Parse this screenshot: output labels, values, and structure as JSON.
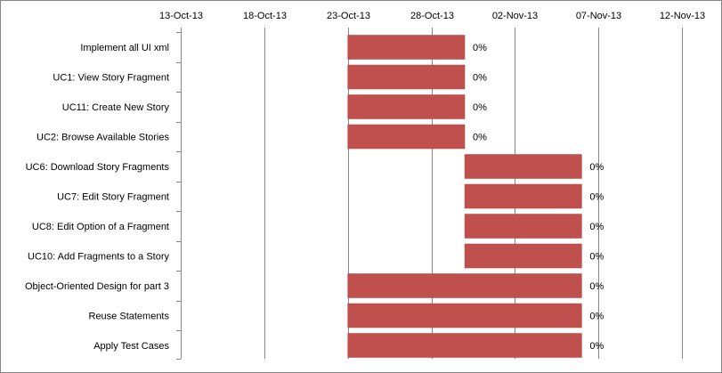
{
  "chart_data": {
    "type": "bar",
    "orientation": "horizontal",
    "subtype": "gantt",
    "title": "",
    "xlabel": "",
    "ylabel": "",
    "x_axis_position": "top",
    "grid": "vertical",
    "legend": "none",
    "xlim": [
      "2013-10-13",
      "2013-11-12"
    ],
    "xticks": [
      "2013-10-13",
      "2013-10-18",
      "2013-10-23",
      "2013-10-28",
      "2013-11-02",
      "2013-11-07",
      "2013-11-12"
    ],
    "xtick_labels": [
      "13-Oct-13",
      "18-Oct-13",
      "23-Oct-13",
      "28-Oct-13",
      "02-Nov-13",
      "07-Nov-13",
      "12-Nov-13"
    ],
    "bar_color": "#c0504d",
    "tasks": [
      {
        "name": "Implement all UI xml",
        "start": "2013-10-23",
        "end": "2013-10-30",
        "label": "0%"
      },
      {
        "name": "UC1: View Story Fragment",
        "start": "2013-10-23",
        "end": "2013-10-30",
        "label": "0%"
      },
      {
        "name": "UC11: Create New Story",
        "start": "2013-10-23",
        "end": "2013-10-30",
        "label": "0%"
      },
      {
        "name": "UC2: Browse Available Stories",
        "start": "2013-10-23",
        "end": "2013-10-30",
        "label": "0%"
      },
      {
        "name": "UC6: Download Story Fragments",
        "start": "2013-10-30",
        "end": "2013-11-06",
        "label": "0%"
      },
      {
        "name": "UC7: Edit Story Fragment",
        "start": "2013-10-30",
        "end": "2013-11-06",
        "label": "0%"
      },
      {
        "name": "UC8: Edit Option of a Fragment",
        "start": "2013-10-30",
        "end": "2013-11-06",
        "label": "0%"
      },
      {
        "name": "UC10: Add Fragments to a Story",
        "start": "2013-10-30",
        "end": "2013-11-06",
        "label": "0%"
      },
      {
        "name": "Object-Oriented Design for part 3",
        "start": "2013-10-23",
        "end": "2013-11-06",
        "label": "0%"
      },
      {
        "name": "Reuse Statements",
        "start": "2013-10-23",
        "end": "2013-11-06",
        "label": "0%"
      },
      {
        "name": "Apply Test Cases",
        "start": "2013-10-23",
        "end": "2013-11-06",
        "label": "0%"
      }
    ]
  }
}
